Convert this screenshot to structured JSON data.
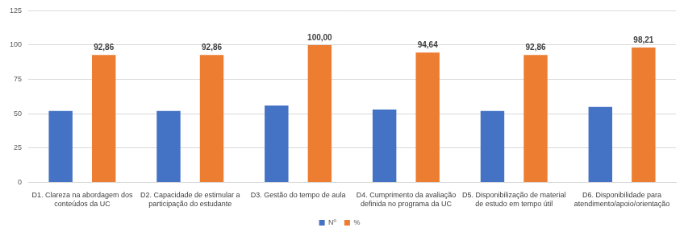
{
  "chart_data": {
    "type": "bar",
    "categories": [
      [
        "D1. Clareza na abordagem dos",
        "conteúdos da UC"
      ],
      [
        "D2. Capacidade de estimular a",
        "participação do estudante"
      ],
      [
        "D3. Gestão do tempo de aula"
      ],
      [
        "D4. Cumprimento da avaliação",
        "definida no programa da UC"
      ],
      [
        "D5. Disponibilização de material",
        "de estudo em tempo útil"
      ],
      [
        "D6. Disponibilidade para",
        "atendimento/apoio/orientação"
      ]
    ],
    "series": [
      {
        "name": "Nº",
        "color": "#4472c4",
        "values": [
          52,
          52,
          56,
          53,
          52,
          55
        ]
      },
      {
        "name": "%",
        "color": "#ed7d31",
        "values": [
          92.86,
          92.86,
          100.0,
          94.64,
          92.86,
          98.21
        ],
        "value_labels": [
          "92,86",
          "92,86",
          "100,00",
          "94,64",
          "92,86",
          "98,21"
        ]
      }
    ],
    "ylim": [
      0,
      125
    ],
    "yticks": [
      0,
      25,
      50,
      75,
      100,
      125
    ],
    "grid": true,
    "legend": "bottom",
    "data_labels": true
  }
}
